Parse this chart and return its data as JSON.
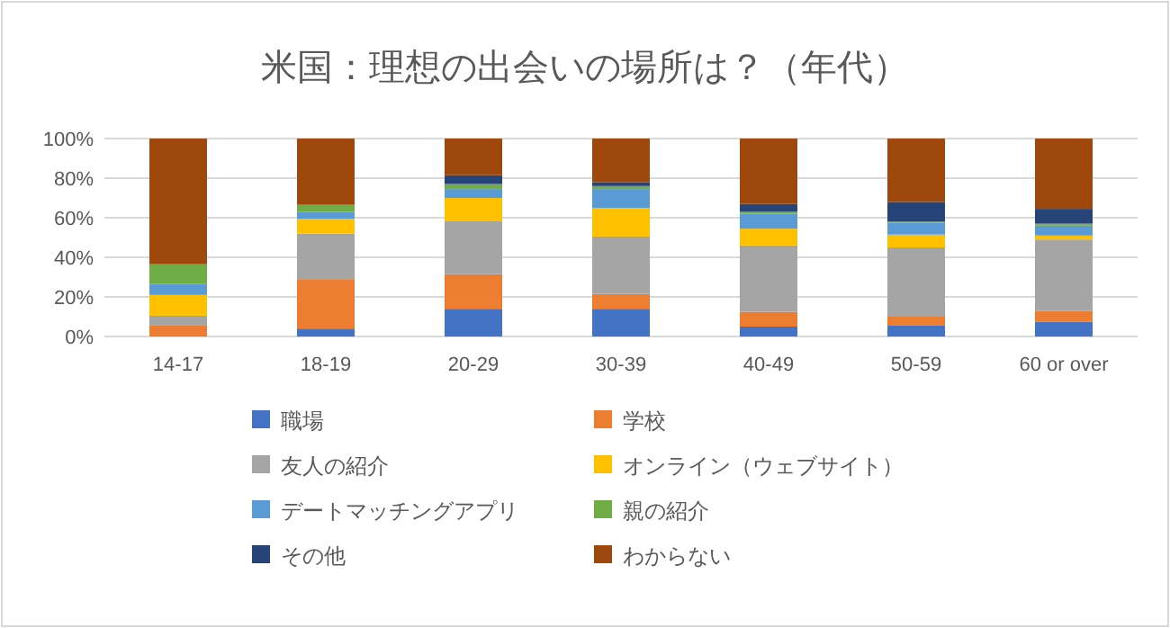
{
  "chart_data": {
    "type": "bar",
    "stacked": true,
    "title": "米国：理想の出会いの場所は？（年代）",
    "categories": [
      "14-17",
      "18-19",
      "20-29",
      "30-39",
      "40-49",
      "50-59",
      "60 or over"
    ],
    "series": [
      {
        "name": "職場",
        "color": "#4472c4",
        "values": [
          0,
          4,
          14,
          14,
          5,
          5.5,
          7.5
        ]
      },
      {
        "name": "学校",
        "color": "#ed7d31",
        "values": [
          5.5,
          25,
          17.5,
          7.5,
          7.5,
          4.5,
          5.5
        ]
      },
      {
        "name": "友人の紹介",
        "color": "#a5a5a5",
        "values": [
          5,
          23,
          27,
          29,
          33.5,
          35,
          36
        ]
      },
      {
        "name": "オンライン（ウェブサイト）",
        "color": "#ffc000",
        "values": [
          10.5,
          7.5,
          11.5,
          14.5,
          8.5,
          6.5,
          2
        ]
      },
      {
        "name": "デートマッチングアプリ",
        "color": "#5b9bd5",
        "values": [
          5.5,
          3.5,
          4.5,
          9.5,
          7.5,
          6,
          5
        ]
      },
      {
        "name": "親の紹介",
        "color": "#70ad47",
        "values": [
          10,
          3.5,
          2.5,
          1.5,
          1,
          0.5,
          1
        ]
      },
      {
        "name": "その他",
        "color": "#264478",
        "values": [
          0,
          0,
          4.5,
          2,
          4,
          10,
          7.5
        ]
      },
      {
        "name": "わからない",
        "color": "#9e480e",
        "values": [
          63.5,
          33.5,
          18.5,
          22,
          33,
          32,
          35.5
        ]
      }
    ],
    "ylim": [
      0,
      100
    ],
    "yticks": [
      {
        "value": 0,
        "label": "0%"
      },
      {
        "value": 20,
        "label": "20%"
      },
      {
        "value": 40,
        "label": "40%"
      },
      {
        "value": 60,
        "label": "60%"
      },
      {
        "value": 80,
        "label": "80%"
      },
      {
        "value": 100,
        "label": "100%"
      }
    ],
    "grid": "y",
    "legend": "bottom"
  }
}
